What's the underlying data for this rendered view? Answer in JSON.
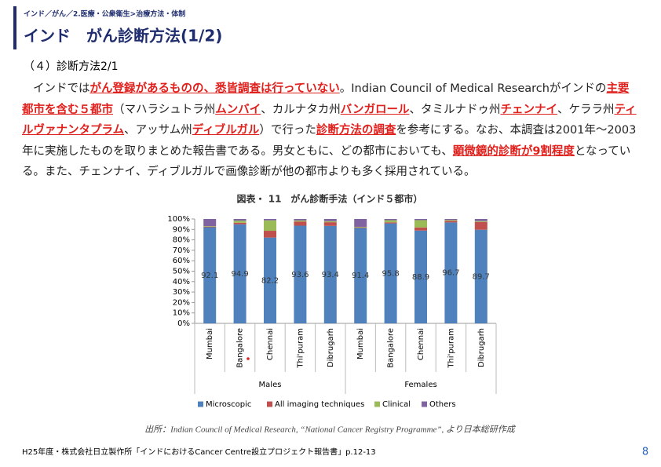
{
  "breadcrumb": "インド／がん／2.医療・公衆衛生>治療方法・体制",
  "title": "インド　がん診断方法(1/2)",
  "section": "（４）診断方法2/1",
  "paragraph": [
    {
      "text": "インドでは",
      "emphasis": false
    },
    {
      "text": "がん登録があるものの、悉皆調査は行っていない",
      "emphasis": true
    },
    {
      "text": "。Indian Council of Medical Researchがインドの",
      "emphasis": false
    },
    {
      "text": "主要都市を含む５都市",
      "emphasis": true
    },
    {
      "text": "（マハラシュトラ州",
      "emphasis": false
    },
    {
      "text": "ムンバイ",
      "emphasis": true
    },
    {
      "text": "、カルナタカ州",
      "emphasis": false
    },
    {
      "text": "バンガロール",
      "emphasis": true
    },
    {
      "text": "、タミルナドゥ州",
      "emphasis": false
    },
    {
      "text": "チェンナイ",
      "emphasis": true
    },
    {
      "text": "、ケララ州",
      "emphasis": false
    },
    {
      "text": "ティルヴァナンタプラム",
      "emphasis": true
    },
    {
      "text": "、アッサム州",
      "emphasis": false
    },
    {
      "text": "ディブルガル",
      "emphasis": true
    },
    {
      "text": "）で行った",
      "emphasis": false
    },
    {
      "text": "診断方法の調査",
      "emphasis": true
    },
    {
      "text": "を参考にする。なお、本調査は2001年～2003年に実施したものを取りまとめた報告書である。男女ともに、どの都市においても、",
      "emphasis": false
    },
    {
      "text": "顕微鏡的診断が9割程度",
      "emphasis": true
    },
    {
      "text": "となっている。また、チェンナイ、ディブルガルで画像診断が他の都市よりも多く採用されている。",
      "emphasis": false
    }
  ],
  "chart_data": {
    "type": "stacked_bar",
    "title": "図表・ 11　がん診断手法（インド５都市）",
    "groups": [
      {
        "label": "Males",
        "categories": [
          "Mumbai",
          "Bangalore",
          "Chennai",
          "Thi'puram",
          "Dibrugarh"
        ]
      },
      {
        "label": "Females",
        "categories": [
          "Mumbai",
          "Bangalore",
          "Chennai",
          "Thi'puram",
          "Dibrugarh"
        ]
      }
    ],
    "series": [
      {
        "name": "Microscopic",
        "color": "#4f81bd",
        "show_values": true,
        "values": [
          92.1,
          94.9,
          82.2,
          93.6,
          93.4,
          91.4,
          95.8,
          88.9,
          96.7,
          89.7
        ]
      },
      {
        "name": "All imaging techniques",
        "color": "#c0504d",
        "show_values": false,
        "values": [
          0.6,
          1.5,
          6.5,
          4,
          3.5,
          0.6,
          1,
          3,
          1.5,
          7.5
        ]
      },
      {
        "name": "Clinical",
        "color": "#9bbb59",
        "show_values": false,
        "values": [
          0.5,
          2,
          10,
          1,
          1,
          0.5,
          2,
          7,
          0.8,
          0.8
        ]
      },
      {
        "name": "Others",
        "color": "#8064a2",
        "show_values": false,
        "values": [
          6.8,
          1.6,
          1.3,
          1.4,
          2.1,
          7.5,
          1.2,
          1.1,
          1,
          2
        ]
      }
    ],
    "ylim": [
      0,
      100
    ],
    "yticks": [
      {
        "value": 0,
        "label": "0%"
      },
      {
        "value": 10,
        "label": "10%"
      },
      {
        "value": 20,
        "label": "20%"
      },
      {
        "value": 30,
        "label": "30%"
      },
      {
        "value": 40,
        "label": "40%"
      },
      {
        "value": 50,
        "label": "50%"
      },
      {
        "value": 60,
        "label": "60%"
      },
      {
        "value": 70,
        "label": "70%"
      },
      {
        "value": 80,
        "label": "80%"
      },
      {
        "value": 90,
        "label": "90%"
      },
      {
        "value": 100,
        "label": "100%"
      }
    ],
    "grid": false,
    "legend": "bottom"
  },
  "source": "出所：Indian Council of Medical Research, “National Cancer Registry Programme”, より日本総研作成",
  "footer": "H25年度・株式会社日立製作所「インドにおけるCancer Centre設立プロジェクト報告書」p.12-13",
  "page_number": "8"
}
